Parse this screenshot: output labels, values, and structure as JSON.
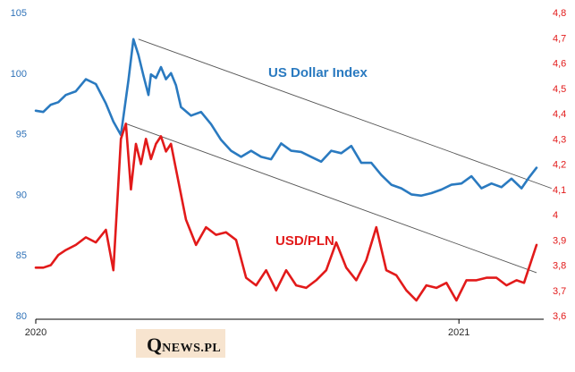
{
  "chart_data": {
    "type": "line",
    "x_labels": [
      "2020",
      "2021"
    ],
    "y_left": {
      "ticks": [
        "80",
        "85",
        "90",
        "95",
        "100",
        "105"
      ],
      "ylim": [
        80,
        105
      ],
      "color": "#2f72b8"
    },
    "y_right": {
      "ticks": [
        "3,6",
        "3,7",
        "3,8",
        "3,9",
        "4",
        "4,1",
        "4,2",
        "4,3",
        "4,4",
        "4,5",
        "4,6",
        "4,7",
        "4,8"
      ],
      "ylim": [
        3.6,
        4.8
      ],
      "color": "#e21a1a"
    },
    "series": [
      {
        "name": "US Dollar Index",
        "axis": "left",
        "color": "#2a7ac0",
        "t": [
          0.0,
          0.015,
          0.03,
          0.045,
          0.06,
          0.08,
          0.1,
          0.12,
          0.14,
          0.155,
          0.17,
          0.185,
          0.195,
          0.205,
          0.215,
          0.225,
          0.23,
          0.24,
          0.25,
          0.26,
          0.27,
          0.28,
          0.29,
          0.31,
          0.33,
          0.35,
          0.37,
          0.39,
          0.41,
          0.43,
          0.45,
          0.47,
          0.49,
          0.51,
          0.53,
          0.55,
          0.57,
          0.59,
          0.61,
          0.63,
          0.65,
          0.67,
          0.69,
          0.71,
          0.73,
          0.75,
          0.77,
          0.79,
          0.81,
          0.83,
          0.85,
          0.87,
          0.89,
          0.91,
          0.93,
          0.95,
          0.97,
          0.985,
          1.0
        ],
        "values": [
          96.9,
          96.8,
          97.4,
          97.6,
          98.2,
          98.5,
          99.5,
          99.1,
          97.5,
          96.0,
          94.9,
          99.4,
          102.8,
          101.5,
          99.8,
          98.2,
          99.9,
          99.6,
          100.5,
          99.5,
          100.0,
          99.0,
          97.2,
          96.5,
          96.8,
          95.8,
          94.5,
          93.6,
          93.1,
          93.6,
          93.1,
          92.9,
          94.2,
          93.6,
          93.5,
          93.1,
          92.7,
          93.6,
          93.4,
          94.0,
          92.6,
          92.6,
          91.6,
          90.8,
          90.5,
          90.0,
          89.9,
          90.1,
          90.4,
          90.8,
          90.9,
          91.5,
          90.5,
          90.9,
          90.6,
          91.3,
          90.5,
          91.4,
          92.2
        ]
      },
      {
        "name": "USD/PLN",
        "axis": "right",
        "color": "#e21a1a",
        "t": [
          0.0,
          0.015,
          0.03,
          0.045,
          0.06,
          0.08,
          0.1,
          0.12,
          0.14,
          0.155,
          0.17,
          0.18,
          0.19,
          0.2,
          0.21,
          0.22,
          0.23,
          0.24,
          0.25,
          0.26,
          0.27,
          0.28,
          0.3,
          0.32,
          0.34,
          0.36,
          0.38,
          0.4,
          0.42,
          0.44,
          0.46,
          0.48,
          0.5,
          0.52,
          0.54,
          0.56,
          0.58,
          0.6,
          0.62,
          0.64,
          0.66,
          0.68,
          0.7,
          0.72,
          0.74,
          0.76,
          0.78,
          0.8,
          0.82,
          0.84,
          0.86,
          0.88,
          0.9,
          0.92,
          0.94,
          0.96,
          0.975,
          0.985,
          1.0
        ],
        "values": [
          3.79,
          3.79,
          3.8,
          3.84,
          3.86,
          3.88,
          3.91,
          3.89,
          3.94,
          3.78,
          4.3,
          4.36,
          4.1,
          4.28,
          4.2,
          4.3,
          4.22,
          4.28,
          4.31,
          4.25,
          4.28,
          4.18,
          3.98,
          3.88,
          3.95,
          3.92,
          3.93,
          3.9,
          3.75,
          3.72,
          3.78,
          3.7,
          3.78,
          3.72,
          3.71,
          3.74,
          3.78,
          3.89,
          3.79,
          3.74,
          3.82,
          3.95,
          3.78,
          3.76,
          3.7,
          3.66,
          3.72,
          3.71,
          3.73,
          3.66,
          3.74,
          3.74,
          3.75,
          3.75,
          3.72,
          3.74,
          3.73,
          3.79,
          3.88
        ]
      }
    ],
    "trendlines": [
      {
        "axis": "left",
        "from": [
          0.205,
          102.8
        ],
        "to": [
          1.03,
          90.5
        ],
        "color": "#555555"
      },
      {
        "axis": "right",
        "from": [
          0.18,
          4.36
        ],
        "to": [
          1.0,
          3.77
        ],
        "color": "#555555"
      }
    ],
    "annotations": [
      {
        "text": "US Dollar Index",
        "color": "#2a7ac0"
      },
      {
        "text": "USD/PLN",
        "color": "#e21a1a"
      }
    ],
    "grid": false
  },
  "logo": {
    "first_letter": "Q",
    "rest": "NEWS.PL"
  }
}
